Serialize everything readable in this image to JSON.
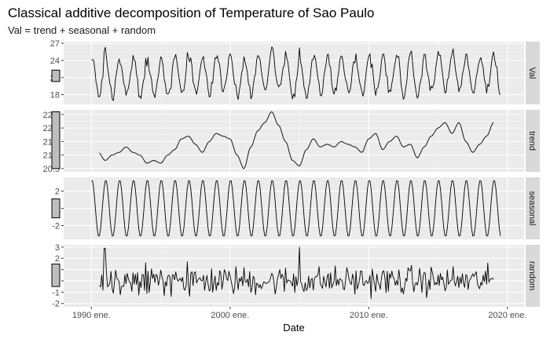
{
  "chart_data": {
    "type": "line",
    "title": "Classical additive decomposition of Temperature of Sao Paulo",
    "subtitle": "Val = trend + seasonal + random",
    "xlabel": "Date",
    "x_ticks": [
      {
        "year": 1990,
        "label": "1990 ene."
      },
      {
        "year": 2000,
        "label": "2000 ene."
      },
      {
        "year": 2010,
        "label": "2010 ene."
      },
      {
        "year": 2020,
        "label": "2020 ene."
      }
    ],
    "xlim": [
      1988.0,
      2021.2
    ],
    "panels": [
      {
        "name": "Val",
        "ylim": [
          16.3,
          27.3
        ],
        "ticks": [
          18,
          21,
          24,
          27
        ],
        "tick_labels": [
          "18",
          "21",
          "24",
          "27"
        ],
        "scale_bar": [
          20.3,
          22.3
        ],
        "series_start": 1990.0,
        "series_end": 2019.5
      },
      {
        "name": "trend",
        "ylim": [
          20.38,
          22.67
        ],
        "ticks": [
          20.5,
          21.0,
          21.5,
          22.0,
          22.5
        ],
        "tick_labels": [
          "20.5",
          "21.0",
          "21.5",
          "22.0",
          "22.5"
        ],
        "scale_bar": [
          20.5,
          22.6
        ],
        "series_start": 1990.5,
        "series_end": 2019.0
      },
      {
        "name": "seasonal",
        "ylim": [
          -3.6,
          3.6
        ],
        "ticks": [
          -2,
          0,
          2
        ],
        "tick_labels": [
          "-2",
          "0",
          "2"
        ],
        "scale_bar": [
          -1.1,
          1.1
        ],
        "series_start": 1990.0,
        "series_end": 2019.5
      },
      {
        "name": "random",
        "ylim": [
          -2.3,
          3.2
        ],
        "ticks": [
          -2,
          -1,
          0,
          1,
          2,
          3
        ],
        "tick_labels": [
          "-2",
          "-1",
          "0",
          "1",
          "2",
          "3"
        ],
        "scale_bar": [
          -0.5,
          1.5
        ],
        "series_start": 1990.5,
        "series_end": 2019.0
      }
    ],
    "seasonal_amplitude": 3.3,
    "val_base": 21.3,
    "trend_knots": [
      [
        1990.5,
        21.1
      ],
      [
        1991.0,
        20.8
      ],
      [
        1991.5,
        21.0
      ],
      [
        1992.0,
        21.1
      ],
      [
        1992.5,
        21.3
      ],
      [
        1993.0,
        21.1
      ],
      [
        1993.5,
        21.0
      ],
      [
        1994.0,
        20.7
      ],
      [
        1994.5,
        20.8
      ],
      [
        1995.0,
        20.7
      ],
      [
        1995.5,
        21.0
      ],
      [
        1996.0,
        21.2
      ],
      [
        1996.5,
        21.6
      ],
      [
        1997.0,
        21.7
      ],
      [
        1997.5,
        21.4
      ],
      [
        1998.0,
        21.1
      ],
      [
        1998.5,
        21.5
      ],
      [
        1999.0,
        21.8
      ],
      [
        1999.5,
        21.7
      ],
      [
        2000.0,
        21.6
      ],
      [
        2000.5,
        21.0
      ],
      [
        2001.0,
        20.5
      ],
      [
        2001.5,
        21.3
      ],
      [
        2002.0,
        21.9
      ],
      [
        2002.5,
        22.2
      ],
      [
        2003.0,
        22.6
      ],
      [
        2003.5,
        22.1
      ],
      [
        2004.0,
        21.5
      ],
      [
        2004.5,
        20.8
      ],
      [
        2005.0,
        20.6
      ],
      [
        2005.5,
        21.2
      ],
      [
        2006.0,
        21.6
      ],
      [
        2006.5,
        21.3
      ],
      [
        2007.0,
        21.4
      ],
      [
        2007.5,
        21.3
      ],
      [
        2008.0,
        21.5
      ],
      [
        2008.5,
        21.4
      ],
      [
        2009.0,
        21.3
      ],
      [
        2009.5,
        21.1
      ],
      [
        2010.0,
        21.6
      ],
      [
        2010.5,
        21.8
      ],
      [
        2011.0,
        21.2
      ],
      [
        2011.5,
        21.5
      ],
      [
        2012.0,
        21.7
      ],
      [
        2012.5,
        21.3
      ],
      [
        2013.0,
        21.4
      ],
      [
        2013.5,
        20.9
      ],
      [
        2014.0,
        21.3
      ],
      [
        2014.5,
        21.7
      ],
      [
        2015.0,
        22.0
      ],
      [
        2015.5,
        22.2
      ],
      [
        2016.0,
        21.8
      ],
      [
        2016.5,
        22.2
      ],
      [
        2017.0,
        21.5
      ],
      [
        2017.5,
        21.1
      ],
      [
        2018.0,
        21.4
      ],
      [
        2018.5,
        21.7
      ],
      [
        2019.0,
        22.2
      ]
    ]
  }
}
